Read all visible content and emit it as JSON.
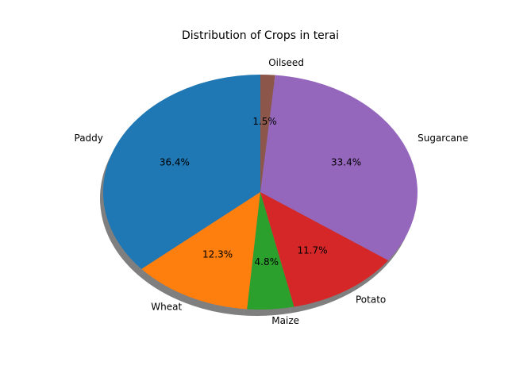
{
  "chart_data": {
    "type": "pie",
    "title": "Distribution of Crops in terai",
    "categories": [
      "Paddy",
      "Wheat",
      "Maize",
      "Potato",
      "Sugarcane",
      "Oilseed"
    ],
    "values": [
      36.4,
      12.3,
      4.8,
      11.7,
      33.4,
      1.5
    ],
    "value_labels": [
      "36.4%",
      "12.3%",
      "4.8%",
      "11.7%",
      "33.4%",
      "1.5%"
    ],
    "colors": [
      "#1f77b4",
      "#ff7f0e",
      "#2ca02c",
      "#d62728",
      "#9467bd",
      "#8c564b"
    ],
    "start_angle_deg": 90,
    "direction": "counterclockwise",
    "shadow": true
  }
}
